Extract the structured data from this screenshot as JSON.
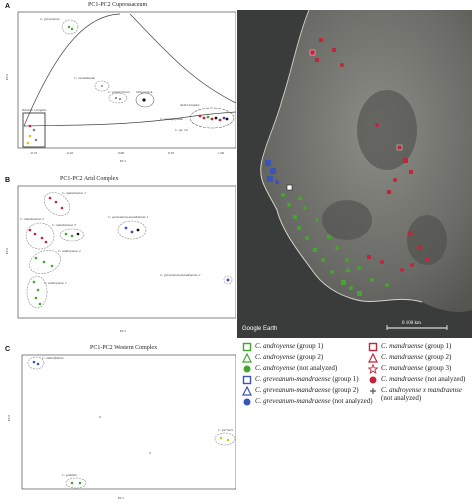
{
  "panels": {
    "A": {
      "letter": "A",
      "title": "PC1-PC2 Cupressaceum",
      "xlabel": "PC1",
      "ylabel": "PC2",
      "labels": [
        "C. greveanum",
        "C. nesiotianum",
        "C. gregariesum",
        "Outgroup A",
        "Western Complex",
        "Arid Complex",
        "C. ovoidphyllum",
        "C. sp. 10"
      ],
      "xticks": [
        "-0.75",
        "-0.45",
        "0.00",
        "0.55",
        "1.00"
      ]
    },
    "B": {
      "letter": "B",
      "title": "PC1-PC2 Arid Complex",
      "xlabel": "PC1",
      "ylabel": "PC2",
      "labels": [
        "C. mandraense 1",
        "C. mandraense 2",
        "C. mandraense 3",
        "C. greveanum-mandraense 1",
        "C. androyense 2",
        "C. androyense 1",
        "C. greveanum-mandraense 2"
      ]
    },
    "C": {
      "letter": "C",
      "title": "PC1-PC2 Western Complex",
      "xlabel": "PC1",
      "ylabel": "PC2",
      "labels": [
        "C. obtusifolium",
        "C. perrieri",
        "C. pumilio"
      ]
    }
  },
  "map": {
    "credit": "Google Earth",
    "scale": "0 100 km"
  },
  "legend": {
    "left": [
      {
        "symbol": "square",
        "color": "#46a52e",
        "name": "C. androyense",
        "group": "(group 1)"
      },
      {
        "symbol": "triangle",
        "color": "#46a52e",
        "name": "C. androyense",
        "group": "(group 2)"
      },
      {
        "symbol": "circle",
        "color": "#46a52e",
        "name": "C. androyense",
        "group": "(not analyzed)"
      },
      {
        "symbol": "square",
        "color": "#3b55b6",
        "name": "C. greveanum-mandraense",
        "group": "(group 1)"
      },
      {
        "symbol": "triangle",
        "color": "#3b55b6",
        "name": "C. greveanum-mandraense",
        "group": "(group 2)"
      },
      {
        "symbol": "circle",
        "color": "#3b55b6",
        "name": "C. greveanum-mandraense",
        "group": "(not analyzed)"
      }
    ],
    "right": [
      {
        "symbol": "square",
        "color": "#c0263b",
        "name": "C. mandraense",
        "group": "(group 1)"
      },
      {
        "symbol": "triangle",
        "color": "#c0263b",
        "name": "C. mandraense",
        "group": "(group 2)"
      },
      {
        "symbol": "star",
        "color": "#c0263b",
        "name": "C. mandraense",
        "group": "(group 3)"
      },
      {
        "symbol": "circle",
        "color": "#c0263b",
        "name": "C. mandraense",
        "group": "(not analyzed)"
      },
      {
        "symbol": "plus",
        "color": "#555555",
        "name": "C. androyense x mandraense",
        "group": "(not analyzed)"
      }
    ]
  }
}
